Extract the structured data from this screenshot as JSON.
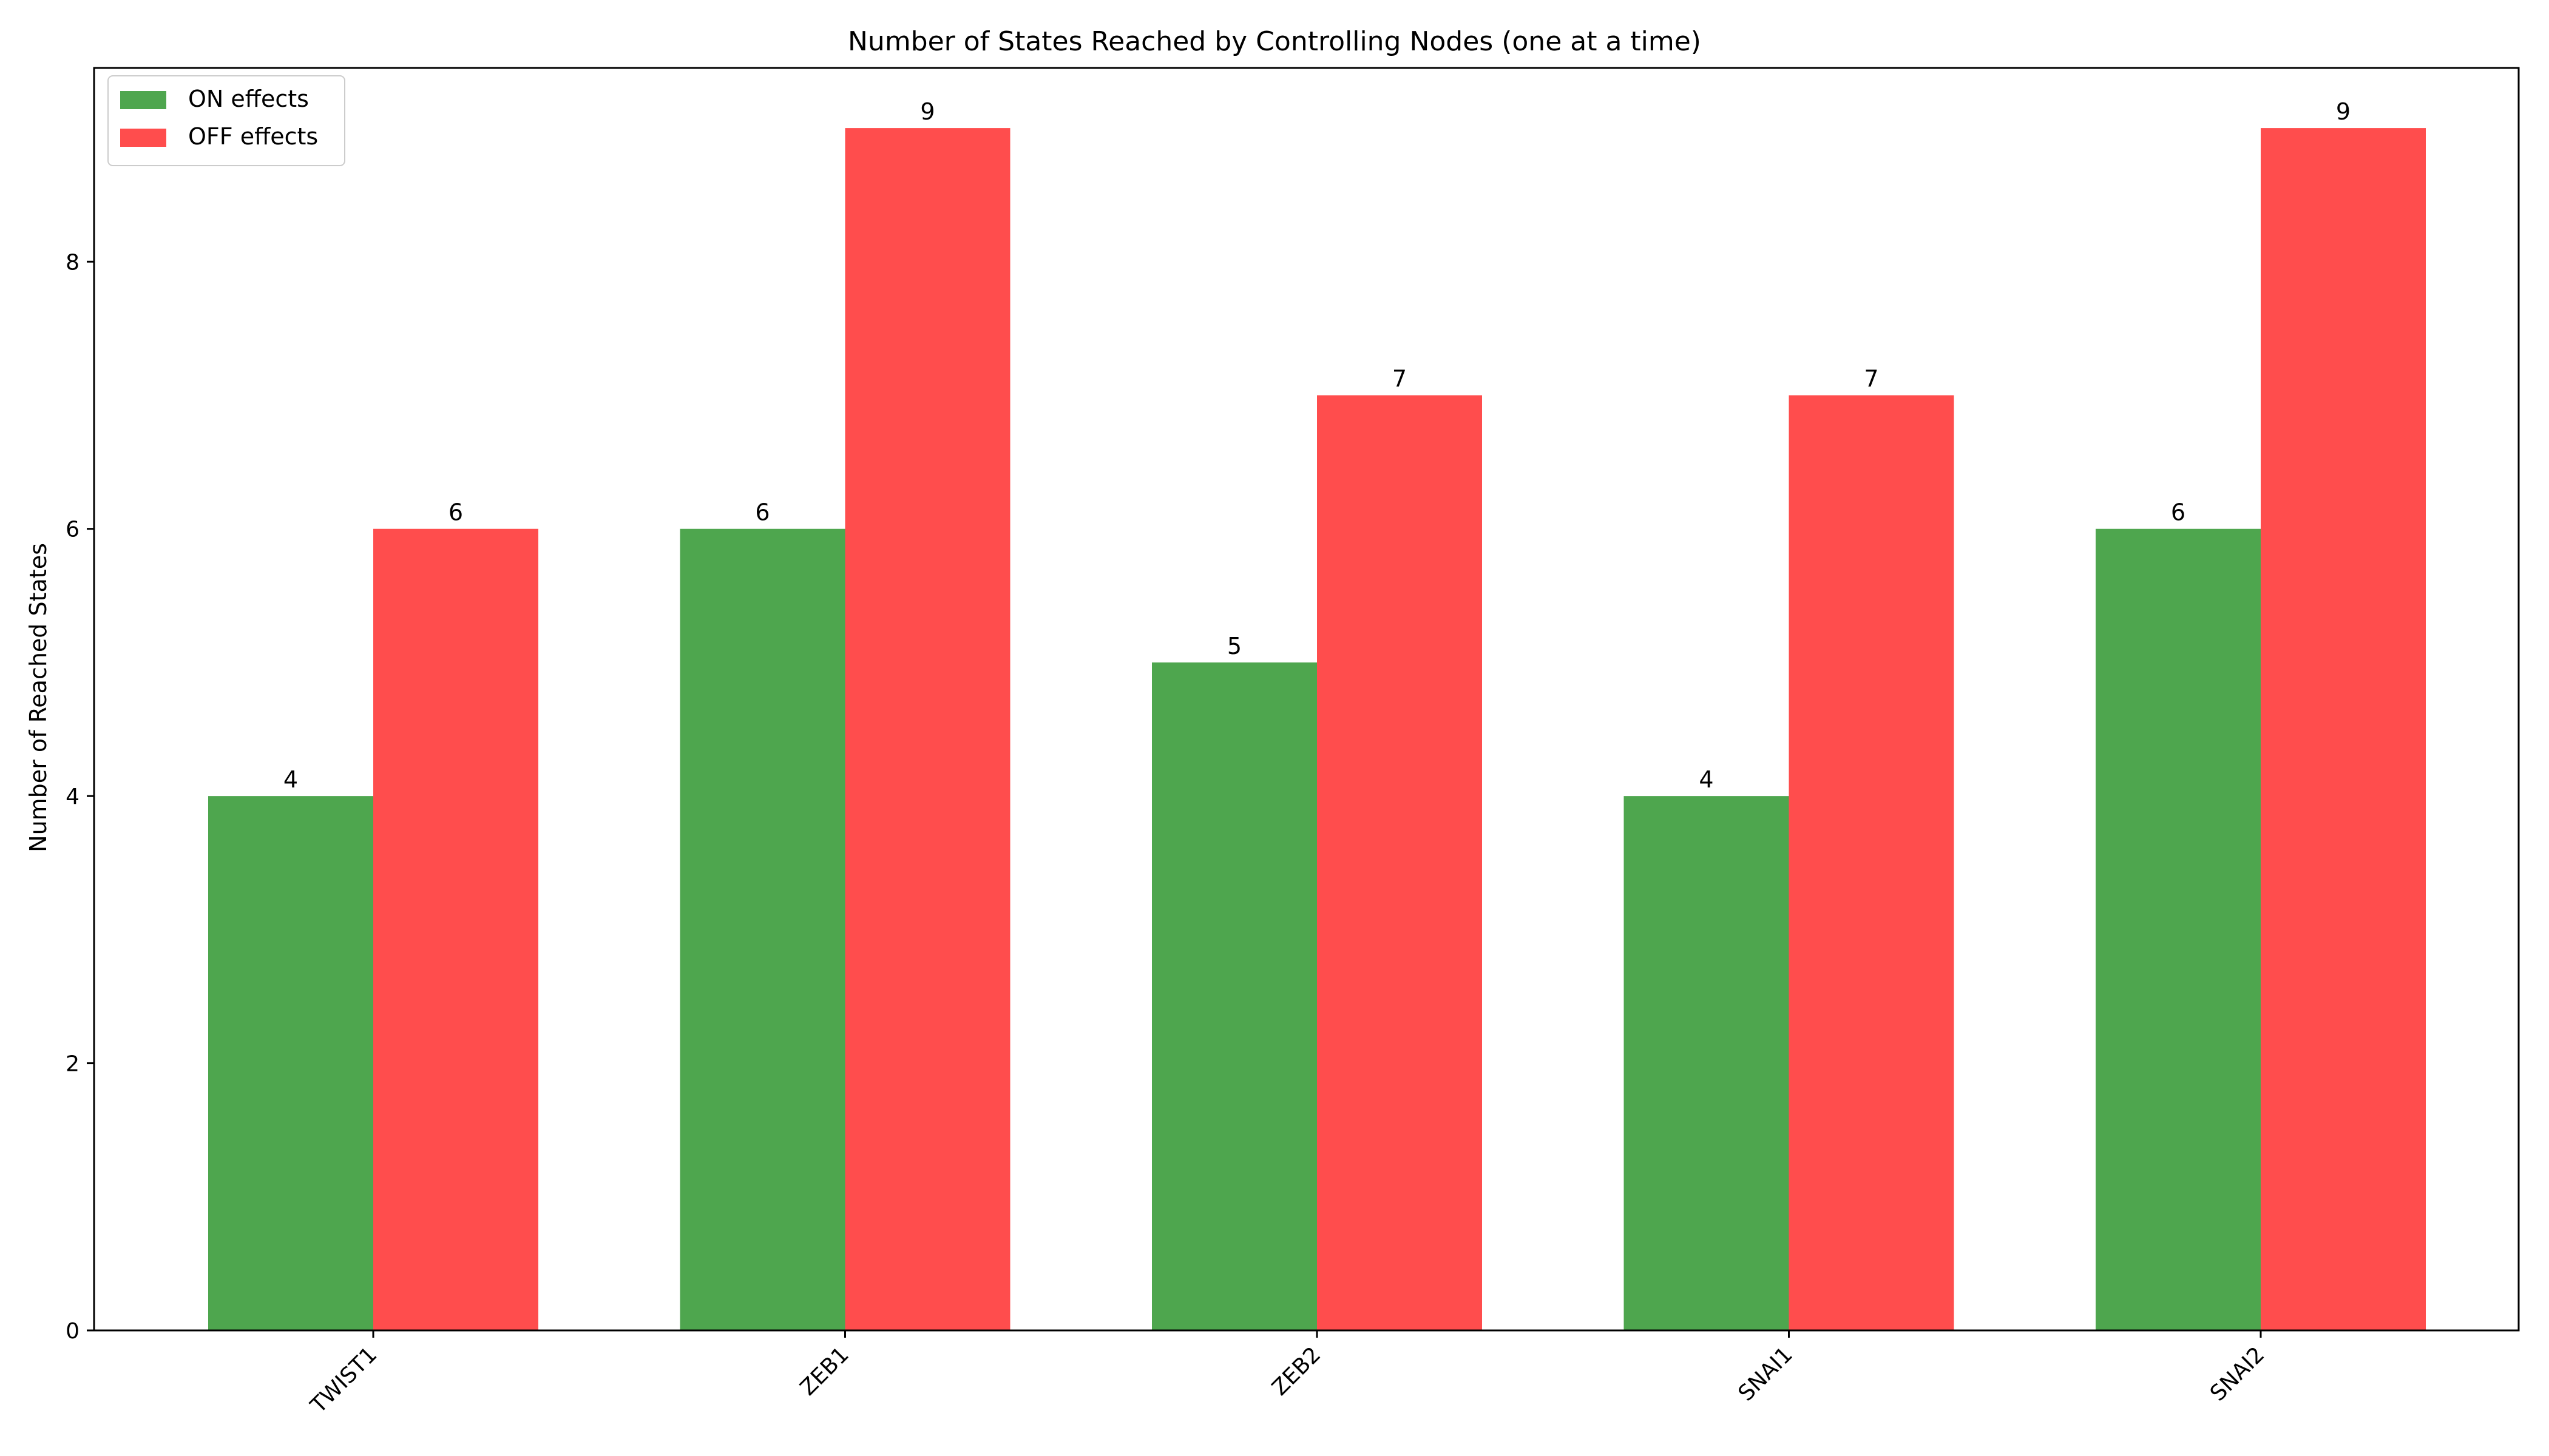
{
  "chart_data": {
    "type": "bar",
    "title": "Number of States Reached by Controlling Nodes (one at a time)",
    "xlabel": "",
    "ylabel": "Number of Reached States",
    "categories": [
      "TWIST1",
      "ZEB1",
      "ZEB2",
      "SNAI1",
      "SNAI2"
    ],
    "series": [
      {
        "name": "ON effects",
        "color": "#4ea64e",
        "values": [
          4,
          6,
          5,
          4,
          6
        ]
      },
      {
        "name": "OFF effects",
        "color": "#ff4d4d",
        "values": [
          6,
          9,
          7,
          7,
          9
        ]
      }
    ],
    "ylim": [
      0,
      9.45
    ],
    "yticks": [
      0,
      2,
      4,
      6,
      8
    ],
    "grid": false,
    "legend_position": "top-left",
    "xtick_rotation_deg": 45
  }
}
